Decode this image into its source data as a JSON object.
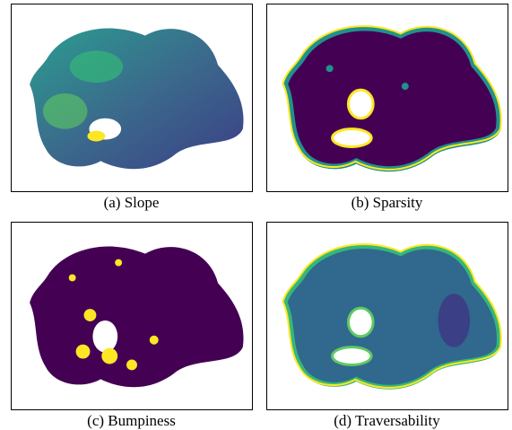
{
  "panels": [
    {
      "caption": "(a) Slope"
    },
    {
      "caption": "(b) Sparsity"
    },
    {
      "caption": "(c) Bumpiness"
    },
    {
      "caption": "(d) Traversability"
    }
  ]
}
